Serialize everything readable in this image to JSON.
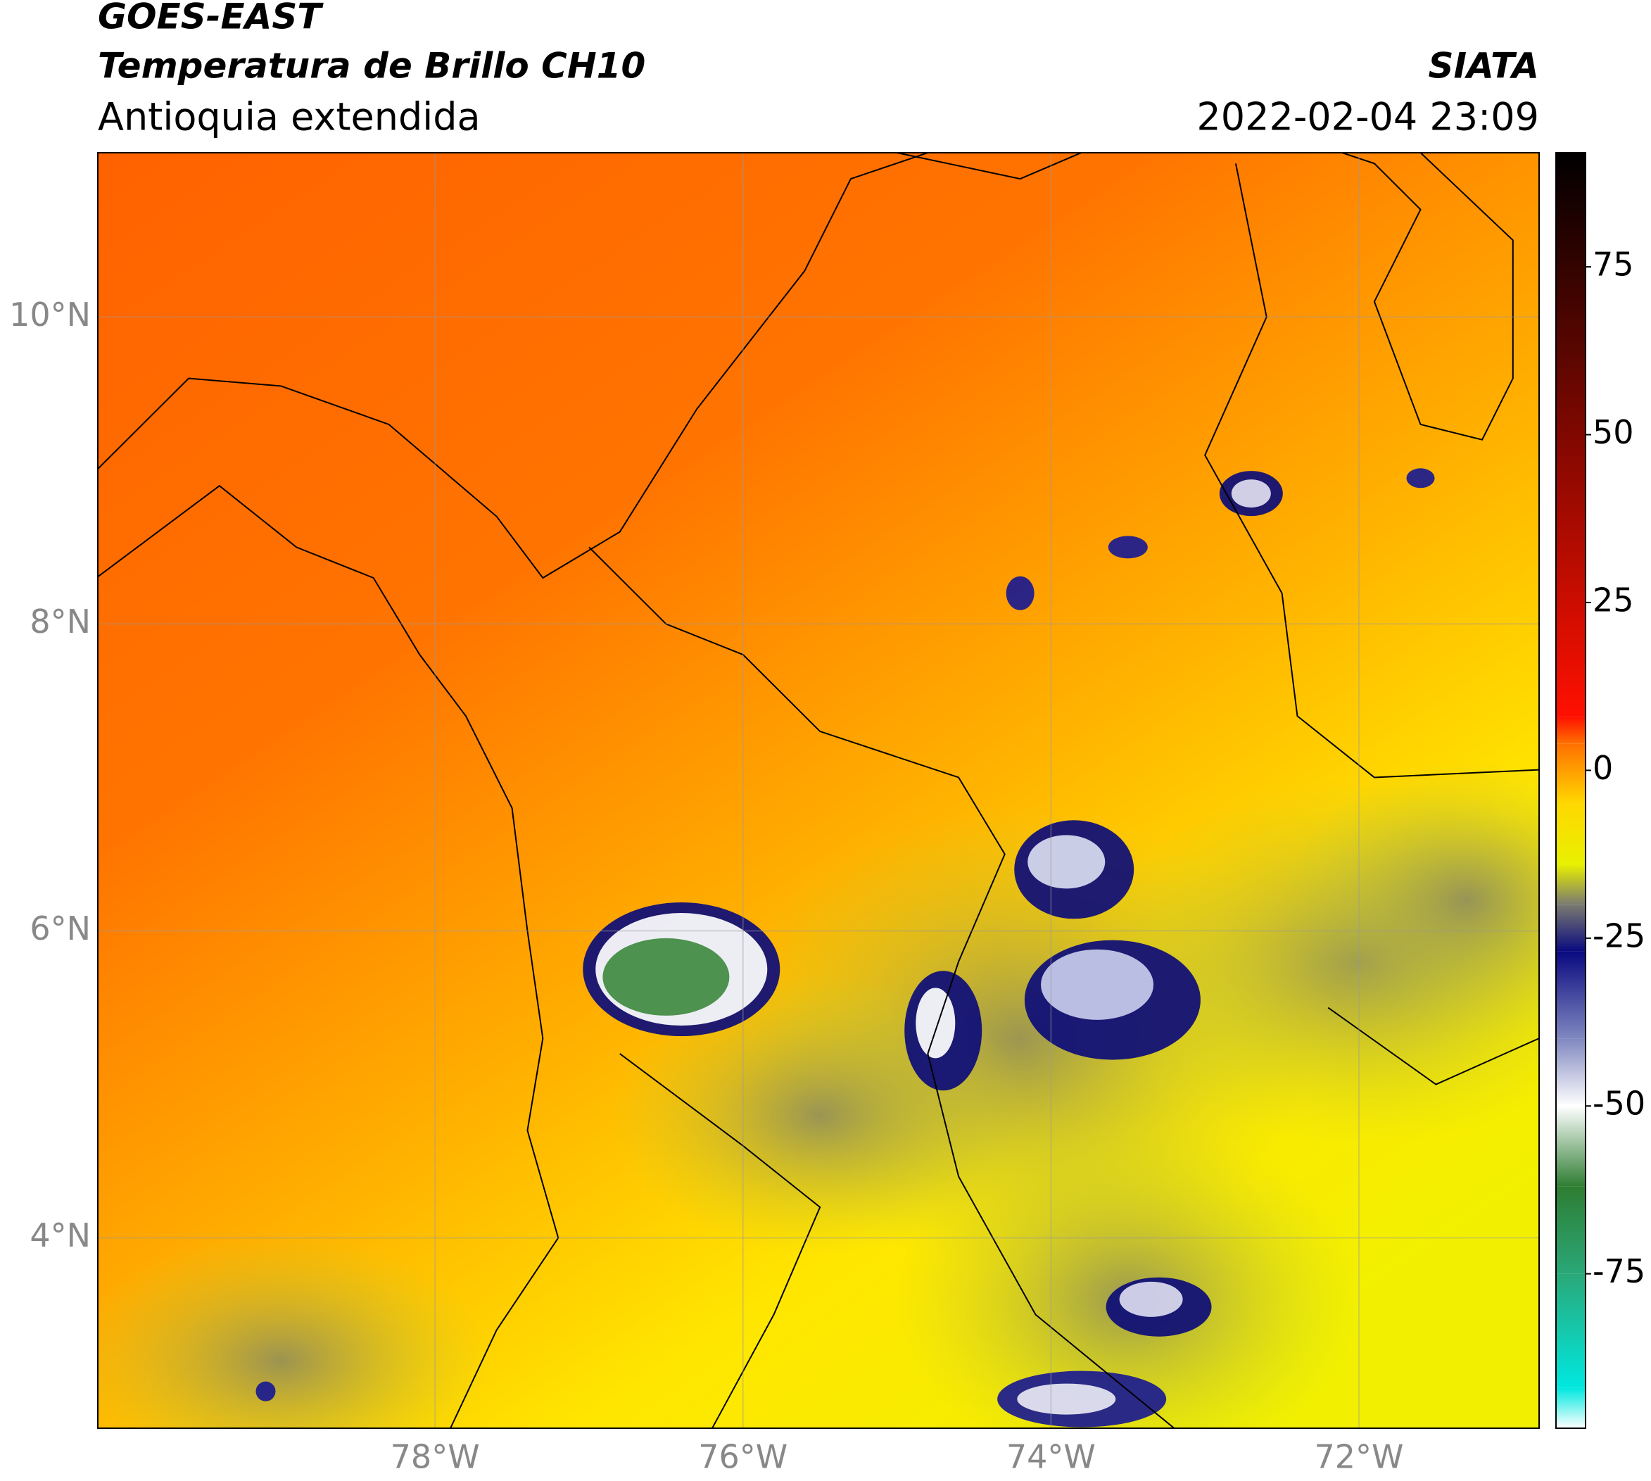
{
  "chart_data": {
    "type": "map",
    "title": "GOES-EAST",
    "subtitle": "Temperatura de Brillo CH10",
    "region": "Antioquia extendida",
    "source": "SIATA",
    "timestamp": "2022-02-04 23:09",
    "xlim": [
      -80.19,
      -70.83
    ],
    "ylim": [
      2.76,
      11.07
    ],
    "xticks": [
      {
        "value": -78,
        "label": "78°W"
      },
      {
        "value": -76,
        "label": "76°W"
      },
      {
        "value": -74,
        "label": "74°W"
      },
      {
        "value": -72,
        "label": "72°W"
      }
    ],
    "yticks": [
      {
        "value": 4,
        "label": "4°N"
      },
      {
        "value": 6,
        "label": "6°N"
      },
      {
        "value": 8,
        "label": "8°N"
      },
      {
        "value": 10,
        "label": "10°N"
      }
    ],
    "grid": true,
    "colorbar": {
      "lim": [
        -98,
        92
      ],
      "ticks": [
        75,
        50,
        25,
        0,
        -25,
        -50,
        -75
      ],
      "stops": [
        {
          "value": -98,
          "color": "#ffffff"
        },
        {
          "value": -92,
          "color": "#00e8e0"
        },
        {
          "value": -75,
          "color": "#2aa878"
        },
        {
          "value": -62,
          "color": "#2e7d32"
        },
        {
          "value": -50,
          "color": "#ffffff"
        },
        {
          "value": -40,
          "color": "#8088c0"
        },
        {
          "value": -27,
          "color": "#0a0a80"
        },
        {
          "value": -20,
          "color": "#7a7a70"
        },
        {
          "value": -14,
          "color": "#e8f000"
        },
        {
          "value": -5,
          "color": "#ffd800"
        },
        {
          "value": 4,
          "color": "#ff7000"
        },
        {
          "value": 8,
          "color": "#ff1000"
        },
        {
          "value": 92,
          "color": "#000000"
        }
      ]
    }
  }
}
